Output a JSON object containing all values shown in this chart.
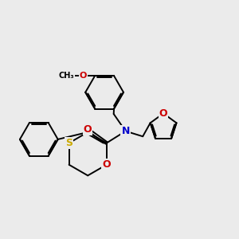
{
  "background_color": "#ebebeb",
  "atom_colors": {
    "C": "#000000",
    "N": "#0000cc",
    "O": "#cc0000",
    "S": "#ccaa00"
  },
  "bond_color": "#000000",
  "bond_width": 1.4,
  "figsize": [
    3.0,
    3.0
  ],
  "dpi": 100,
  "xlim": [
    0.5,
    9.5
  ],
  "ylim": [
    1.0,
    9.5
  ]
}
